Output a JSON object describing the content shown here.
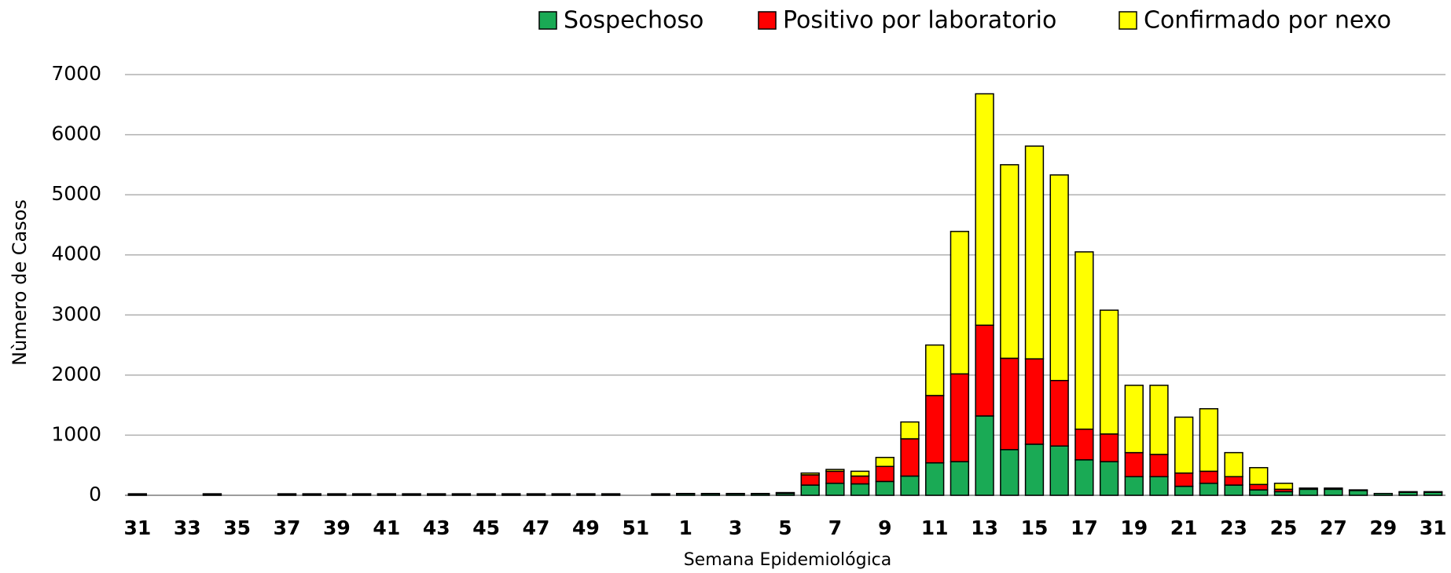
{
  "chart_data": {
    "type": "stacked_bar",
    "x_label": "Semana Epidemiológica",
    "y_label": "Nùmero de Casos",
    "categories": [
      "31",
      null,
      "33",
      null,
      "35",
      null,
      "37",
      null,
      "39",
      null,
      "41",
      null,
      "43",
      null,
      "45",
      null,
      "47",
      null,
      "49",
      null,
      "51",
      null,
      "1",
      null,
      "3",
      null,
      "5",
      null,
      "7",
      null,
      "9",
      null,
      "11",
      null,
      "13",
      null,
      "15",
      null,
      "17",
      null,
      "19",
      null,
      "21",
      null,
      "23",
      null,
      "25",
      null,
      "27",
      null,
      "29",
      null,
      "31"
    ],
    "series": [
      {
        "name": "Sospechoso",
        "color": "#1aaa55",
        "values": [
          20,
          0,
          0,
          20,
          0,
          0,
          20,
          20,
          20,
          20,
          20,
          20,
          20,
          20,
          20,
          20,
          20,
          20,
          20,
          20,
          0,
          20,
          25,
          25,
          25,
          25,
          30,
          170,
          200,
          190,
          230,
          320,
          540,
          560,
          1320,
          760,
          850,
          820,
          590,
          560,
          310,
          310,
          150,
          200,
          170,
          90,
          60,
          100,
          100,
          80,
          30,
          50,
          50
        ]
      },
      {
        "name": "Positivo por laboratorio",
        "color": "#ff0000",
        "values": [
          5,
          0,
          0,
          5,
          0,
          0,
          5,
          5,
          5,
          5,
          5,
          5,
          5,
          5,
          5,
          5,
          5,
          5,
          5,
          5,
          0,
          5,
          5,
          5,
          5,
          5,
          10,
          170,
          200,
          130,
          250,
          620,
          1120,
          1460,
          1510,
          1520,
          1420,
          1090,
          510,
          460,
          400,
          370,
          220,
          200,
          140,
          90,
          40,
          20,
          20,
          10,
          0,
          10,
          10
        ]
      },
      {
        "name": "Confirmado por nexo",
        "color": "#ffff00",
        "values": [
          0,
          0,
          0,
          0,
          0,
          0,
          0,
          0,
          0,
          0,
          0,
          0,
          0,
          0,
          0,
          0,
          0,
          0,
          0,
          0,
          0,
          0,
          0,
          0,
          0,
          0,
          5,
          30,
          30,
          80,
          150,
          280,
          840,
          2370,
          3850,
          3220,
          3540,
          3420,
          2950,
          2060,
          1120,
          1150,
          930,
          1040,
          400,
          280,
          100,
          0,
          0,
          0,
          0,
          0,
          0
        ]
      }
    ],
    "ylim": [
      0,
      7000
    ],
    "yticks": [
      0,
      1000,
      2000,
      3000,
      4000,
      5000,
      6000,
      7000
    ],
    "grid": true,
    "legend": "top"
  }
}
